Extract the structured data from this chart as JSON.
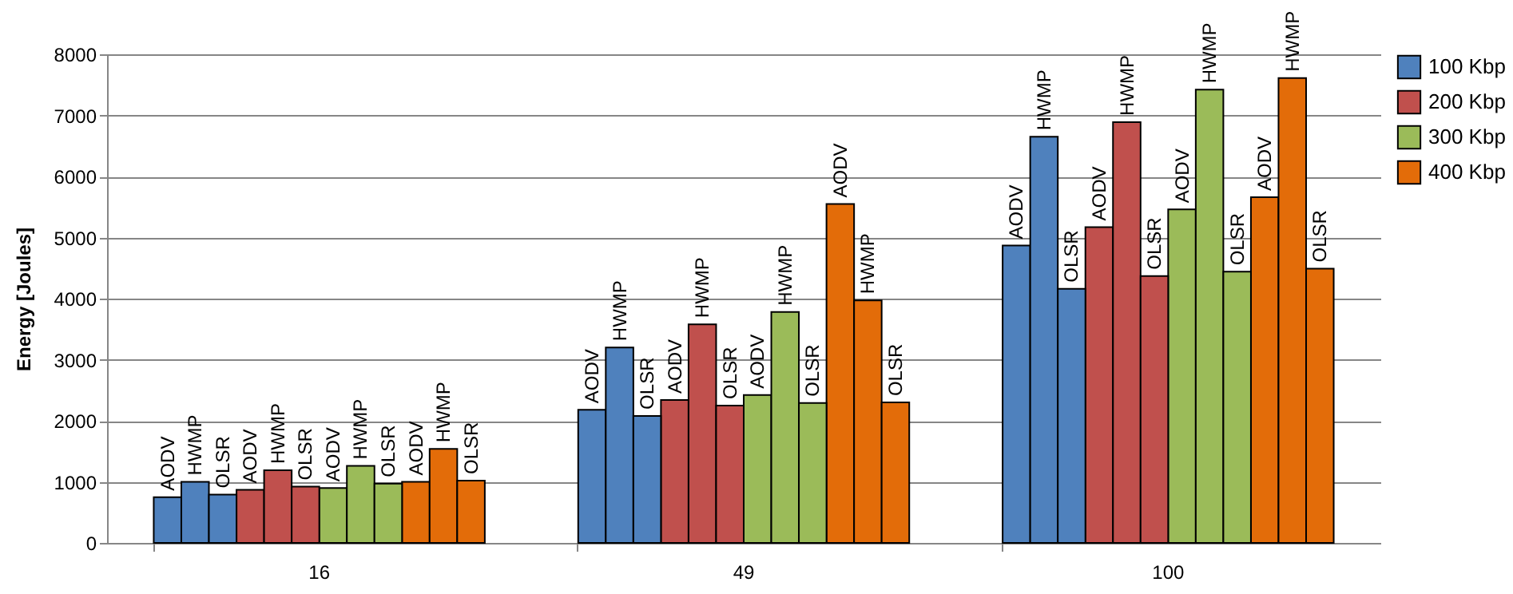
{
  "chart_data": {
    "type": "bar",
    "ylabel": "Energy [Joules]",
    "categories": [
      "16",
      "49",
      "100"
    ],
    "ylim": [
      0,
      8000
    ],
    "yticks": [
      0,
      1000,
      2000,
      3000,
      4000,
      5000,
      6000,
      7000,
      8000
    ],
    "grid": "y",
    "legend": "right",
    "series": [
      {
        "name": "100 Kbp",
        "color": "#4f81bd",
        "values": [
          750,
          2180,
          4870
        ],
        "value_labels": [
          "AODV",
          "AODV",
          "AODV"
        ]
      },
      {
        "color": "#4f81bd",
        "values": [
          1000,
          3200,
          6650
        ],
        "value_labels": [
          "HWMP",
          "HWMP",
          "HWMP"
        ]
      },
      {
        "color": "#4f81bd",
        "values": [
          790,
          2080,
          4160
        ],
        "value_labels": [
          "OLSR",
          "OLSR",
          "OLSR"
        ]
      },
      {
        "name": "200 Kbp",
        "color": "#c0504d",
        "values": [
          870,
          2340,
          5170
        ],
        "value_labels": [
          "AODV",
          "AODV",
          "AODV"
        ]
      },
      {
        "color": "#c0504d",
        "values": [
          1190,
          3580,
          6890
        ],
        "value_labels": [
          "HWMP",
          "HWMP",
          "HWMP"
        ]
      },
      {
        "color": "#c0504d",
        "values": [
          920,
          2250,
          4370
        ],
        "value_labels": [
          "OLSR",
          "OLSR",
          "OLSR"
        ]
      },
      {
        "name": "300 Kbp",
        "color": "#9bbb59",
        "values": [
          900,
          2420,
          5460
        ],
        "value_labels": [
          "AODV",
          "AODV",
          "AODV"
        ]
      },
      {
        "color": "#9bbb59",
        "values": [
          1260,
          3780,
          7420
        ],
        "value_labels": [
          "HWMP",
          "HWMP",
          "HWMP"
        ]
      },
      {
        "color": "#9bbb59",
        "values": [
          970,
          2290,
          4440
        ],
        "value_labels": [
          "OLSR",
          "OLSR",
          "OLSR"
        ]
      },
      {
        "name": "400 Kbp",
        "color": "#e36c09",
        "values": [
          1000,
          5550,
          5660
        ],
        "value_labels": [
          "AODV",
          "AODV",
          "AODV"
        ]
      },
      {
        "color": "#e36c09",
        "values": [
          1540,
          3970,
          7610
        ],
        "value_labels": [
          "HWMP",
          "HWMP",
          "HWMP"
        ]
      },
      {
        "color": "#e36c09",
        "values": [
          1020,
          2300,
          4490
        ],
        "value_labels": [
          "OLSR",
          "OLSR",
          "OLSR"
        ]
      }
    ]
  }
}
